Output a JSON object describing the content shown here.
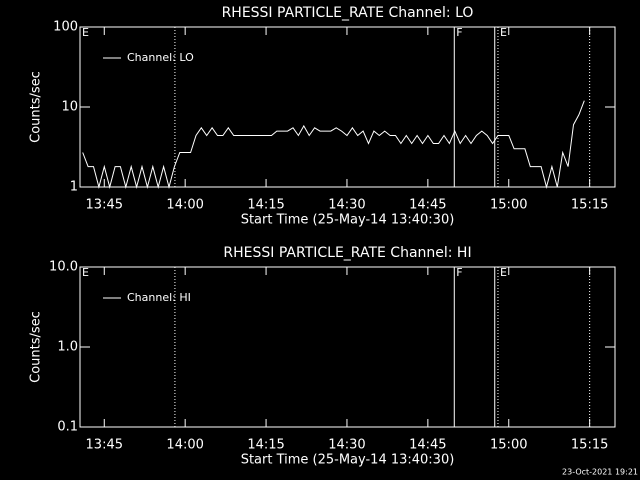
{
  "chart_data": [
    {
      "type": "line",
      "title": "RHESSI PARTICLE_RATE Channel: LO",
      "xlabel": "Start Time (25-May-14 13:40:30)",
      "ylabel": "Counts/sec",
      "x": [
        821,
        822,
        823,
        824,
        825,
        826,
        827,
        828,
        829,
        830,
        831,
        832,
        833,
        834,
        835,
        836,
        837,
        838,
        839,
        840,
        841,
        842,
        843,
        844,
        845,
        846,
        847,
        848,
        849,
        850,
        851,
        852,
        853,
        854,
        855,
        856,
        857,
        858,
        859,
        860,
        861,
        862,
        863,
        864,
        865,
        866,
        867,
        868,
        869,
        870,
        871,
        872,
        873,
        874,
        875,
        876,
        877,
        878,
        879,
        880,
        881,
        882,
        883,
        884,
        885,
        886,
        887,
        888,
        889,
        890,
        891,
        892,
        893,
        894,
        895,
        896,
        897,
        898,
        899,
        900,
        901,
        902,
        903,
        904,
        905,
        906,
        907,
        908,
        909,
        910,
        911,
        912,
        913,
        914
      ],
      "series": [
        {
          "name": "Channel: LO",
          "color": "#ffffff",
          "values": [
            2.7,
            1.8,
            1.8,
            1,
            1.8,
            1,
            1.8,
            1.8,
            1,
            1.8,
            1,
            1.8,
            1,
            1.8,
            1,
            1.8,
            1,
            1.8,
            2.7,
            2.7,
            2.7,
            4.4,
            5.5,
            4.4,
            5.5,
            4.4,
            4.4,
            5.5,
            4.4,
            4.4,
            4.4,
            4.4,
            4.4,
            4.4,
            4.4,
            4.4,
            5,
            5,
            5,
            5.5,
            4.4,
            5.8,
            4.4,
            5.5,
            5,
            5,
            5,
            5.5,
            5,
            4.4,
            5.5,
            4.4,
            5,
            3.5,
            5,
            4.4,
            5,
            4.4,
            4.4,
            3.5,
            4.4,
            3.5,
            4.4,
            3.5,
            4.4,
            3.5,
            3.5,
            4.4,
            3.5,
            5,
            3.5,
            4.4,
            3.5,
            4.4,
            5,
            4.4,
            3.5,
            4.4,
            4.4,
            4.4,
            3,
            3,
            3,
            1.8,
            1.8,
            1.8,
            1,
            1.8,
            1,
            2.7,
            1.8,
            6,
            8,
            12
          ]
        }
      ],
      "xlim": [
        820.5,
        919.7
      ],
      "xticks": [
        {
          "value": 825,
          "label": "13:45"
        },
        {
          "value": 840,
          "label": "14:00"
        },
        {
          "value": 855,
          "label": "14:15"
        },
        {
          "value": 870,
          "label": "14:30"
        },
        {
          "value": 885,
          "label": "14:45"
        },
        {
          "value": 900,
          "label": "15:00"
        },
        {
          "value": 915,
          "label": "15:15"
        }
      ],
      "ylim": [
        1,
        100
      ],
      "yticks": [
        1,
        10,
        100
      ],
      "log_y": true,
      "legend": "upper left",
      "vlines": [
        {
          "x": 820.5,
          "style": "solid",
          "label": "E"
        },
        {
          "x": 838.1,
          "style": "dotted"
        },
        {
          "x": 889.9,
          "style": "solid",
          "label": "F"
        },
        {
          "x": 897.4,
          "style": "solid"
        },
        {
          "x": 898,
          "style": "dotted",
          "label": "E"
        },
        {
          "x": 915,
          "style": "dotted"
        }
      ]
    },
    {
      "type": "line",
      "title": "RHESSI PARTICLE_RATE Channel: HI",
      "xlabel": "Start Time (25-May-14 13:40:30)",
      "ylabel": "Counts/sec",
      "x": [],
      "series": [
        {
          "name": "Channel: HI",
          "color": "#ffffff",
          "values": []
        }
      ],
      "xlim": [
        820.5,
        919.7
      ],
      "xticks": [
        {
          "value": 825,
          "label": "13:45"
        },
        {
          "value": 840,
          "label": "14:00"
        },
        {
          "value": 855,
          "label": "14:15"
        },
        {
          "value": 870,
          "label": "14:30"
        },
        {
          "value": 885,
          "label": "14:45"
        },
        {
          "value": 900,
          "label": "15:00"
        },
        {
          "value": 915,
          "label": "15:15"
        }
      ],
      "ylim": [
        0.1,
        10
      ],
      "yticks": [
        0.1,
        {
          "value": 1,
          "label": "1.0"
        },
        {
          "value": 10,
          "label": "10.0"
        }
      ],
      "log_y": true,
      "legend": "upper left",
      "vlines": [
        {
          "x": 820.5,
          "style": "solid",
          "label": "E"
        },
        {
          "x": 838.1,
          "style": "dotted"
        },
        {
          "x": 889.9,
          "style": "solid",
          "label": "F"
        },
        {
          "x": 897.4,
          "style": "solid"
        },
        {
          "x": 898,
          "style": "dotted",
          "label": "E"
        },
        {
          "x": 915,
          "style": "dotted"
        }
      ]
    }
  ],
  "footer": "23-Oct-2021 19:21"
}
